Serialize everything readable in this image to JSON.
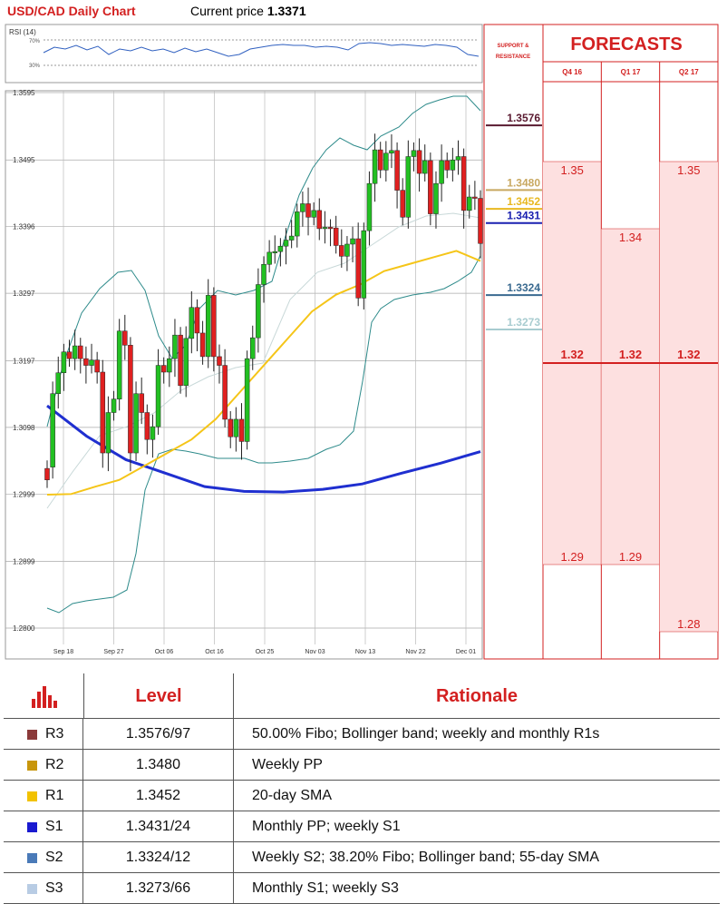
{
  "header": {
    "title": "USD/CAD Daily Chart",
    "current_price_label": "Current price",
    "current_price_value": "1.3371"
  },
  "rsi": {
    "label": "RSI (14)",
    "upper": "70%",
    "lower": "30%"
  },
  "chart_data": {
    "type": "candlestick",
    "y_ticks": [
      "1.3595",
      "1.3495",
      "1.3396",
      "1.3297",
      "1.3197",
      "1.3098",
      "1.2999",
      "1.2899",
      "1.2800"
    ],
    "ylim": [
      1.278,
      1.361
    ],
    "x_ticks": [
      "Sep 18",
      "Sep 27",
      "Oct 06",
      "Oct 16",
      "Oct 25",
      "Nov 03",
      "Nov 13",
      "Nov 22",
      "Dec 01"
    ],
    "candles": [
      [
        1.3037,
        1.302
      ],
      [
        1.3039,
        1.3148
      ],
      [
        1.3148,
        1.3179
      ],
      [
        1.3179,
        1.321
      ],
      [
        1.321,
        1.32
      ],
      [
        1.32,
        1.3219
      ],
      [
        1.3219,
        1.32
      ],
      [
        1.32,
        1.319
      ],
      [
        1.319,
        1.3198
      ],
      [
        1.3198,
        1.318
      ],
      [
        1.318,
        1.306
      ],
      [
        1.306,
        1.312
      ],
      [
        1.312,
        1.314
      ],
      [
        1.314,
        1.3241
      ],
      [
        1.3241,
        1.322
      ],
      [
        1.322,
        1.306
      ],
      [
        1.306,
        1.3148
      ],
      [
        1.3148,
        1.312
      ],
      [
        1.312,
        1.308
      ],
      [
        1.308,
        1.3099
      ],
      [
        1.3099,
        1.319
      ],
      [
        1.319,
        1.318
      ],
      [
        1.318,
        1.32
      ],
      [
        1.32,
        1.3235
      ],
      [
        1.3235,
        1.316
      ],
      [
        1.316,
        1.323
      ],
      [
        1.323,
        1.3276
      ],
      [
        1.3276,
        1.3238
      ],
      [
        1.3238,
        1.3203
      ],
      [
        1.3203,
        1.3294
      ],
      [
        1.3294,
        1.3203
      ],
      [
        1.3203,
        1.319
      ],
      [
        1.319,
        1.311
      ],
      [
        1.311,
        1.3084
      ],
      [
        1.3084,
        1.311
      ],
      [
        1.311,
        1.3077
      ],
      [
        1.3077,
        1.32
      ],
      [
        1.32,
        1.3231
      ],
      [
        1.3231,
        1.331
      ],
      [
        1.331,
        1.334
      ],
      [
        1.334,
        1.3358
      ],
      [
        1.3358,
        1.3359
      ],
      [
        1.3359,
        1.3367
      ],
      [
        1.3367,
        1.3376
      ],
      [
        1.3376,
        1.3382
      ],
      [
        1.3382,
        1.3418
      ],
      [
        1.3418,
        1.343
      ],
      [
        1.343,
        1.341
      ],
      [
        1.341,
        1.342
      ],
      [
        1.342,
        1.3393
      ],
      [
        1.3393,
        1.3395
      ],
      [
        1.3395,
        1.3394
      ],
      [
        1.3394,
        1.3368
      ],
      [
        1.3368,
        1.3352
      ],
      [
        1.3352,
        1.337
      ],
      [
        1.337,
        1.3378
      ],
      [
        1.3378,
        1.329
      ],
      [
        1.329,
        1.339
      ],
      [
        1.339,
        1.346
      ],
      [
        1.346,
        1.351
      ],
      [
        1.351,
        1.348
      ],
      [
        1.348,
        1.3505
      ],
      [
        1.3505,
        1.3509
      ],
      [
        1.3509,
        1.345
      ],
      [
        1.345,
        1.341
      ],
      [
        1.341,
        1.35
      ],
      [
        1.35,
        1.3509
      ],
      [
        1.3509,
        1.3475
      ],
      [
        1.3475,
        1.3494
      ],
      [
        1.3494,
        1.3415
      ],
      [
        1.3415,
        1.346
      ],
      [
        1.346,
        1.3494
      ],
      [
        1.3494,
        1.348
      ],
      [
        1.348,
        1.3495
      ],
      [
        1.3495,
        1.35
      ],
      [
        1.35,
        1.342
      ],
      [
        1.342,
        1.344
      ],
      [
        1.344,
        1.3438
      ],
      [
        1.3438,
        1.3371
      ]
    ],
    "sma_20": [
      [
        1.2998,
        1.2999
      ],
      [
        1.301,
        1.302
      ],
      [
        1.304,
        1.306
      ],
      [
        1.308,
        1.311
      ],
      [
        1.315,
        1.319
      ],
      [
        1.323,
        1.327
      ],
      [
        1.3295,
        1.331
      ],
      [
        1.333,
        1.334
      ],
      [
        1.335,
        1.336
      ]
    ],
    "sma_55": [
      1.313,
      1.3085,
      1.305,
      1.303,
      1.301,
      1.3003,
      1.3002,
      1.3006,
      1.3014,
      1.303,
      1.3045,
      1.3062
    ],
    "support_resistance_title": "SUPPORT & RESISTANCE",
    "levels": [
      {
        "value": "1.3576",
        "color": "#5a1a30",
        "price": 1.3576
      },
      {
        "value": "1.3480",
        "color": "#c8a860",
        "price": 1.348
      },
      {
        "value": "1.3452",
        "color": "#e8b820",
        "price": 1.3452
      },
      {
        "value": "1.3431",
        "color": "#1a20b0",
        "price": 1.3431
      },
      {
        "value": "1.3324",
        "color": "#3a6a90",
        "price": 1.3324
      },
      {
        "value": "1.3273",
        "color": "#a8ccd0",
        "price": 1.3273
      }
    ]
  },
  "forecasts": {
    "title": "FORECASTS",
    "columns": [
      "Q4 16",
      "Q1 17",
      "Q2 17"
    ],
    "values": [
      {
        "high": "1.35",
        "mid": "1.32",
        "low": "1.29"
      },
      {
        "high": "1.34",
        "mid": "1.32",
        "low": "1.29"
      },
      {
        "high": "1.35",
        "mid": "1.32",
        "low": "1.28"
      }
    ]
  },
  "rationale_table": {
    "header_level": "Level",
    "header_rationale": "Rationale",
    "rows": [
      {
        "name": "R3",
        "level": "1.3576/97",
        "rationale": "50.00% Fibo; Bollinger band; weekly and monthly R1s",
        "color": "#8b3a3a"
      },
      {
        "name": "R2",
        "level": "1.3480",
        "rationale": "Weekly PP",
        "color": "#c8960c"
      },
      {
        "name": "R1",
        "level": "1.3452",
        "rationale": "20-day SMA",
        "color": "#f2c200"
      },
      {
        "name": "S1",
        "level": "1.3431/24",
        "rationale": "Monthly PP; weekly S1",
        "color": "#1a1ad0"
      },
      {
        "name": "S2",
        "level": "1.3324/12",
        "rationale": "Weekly S2; 38.20% Fibo; Bollinger band; 55-day SMA",
        "color": "#4a7ab8"
      },
      {
        "name": "S3",
        "level": "1.3273/66",
        "rationale": "Monthly S1; weekly S3",
        "color": "#b8cce4"
      }
    ]
  }
}
